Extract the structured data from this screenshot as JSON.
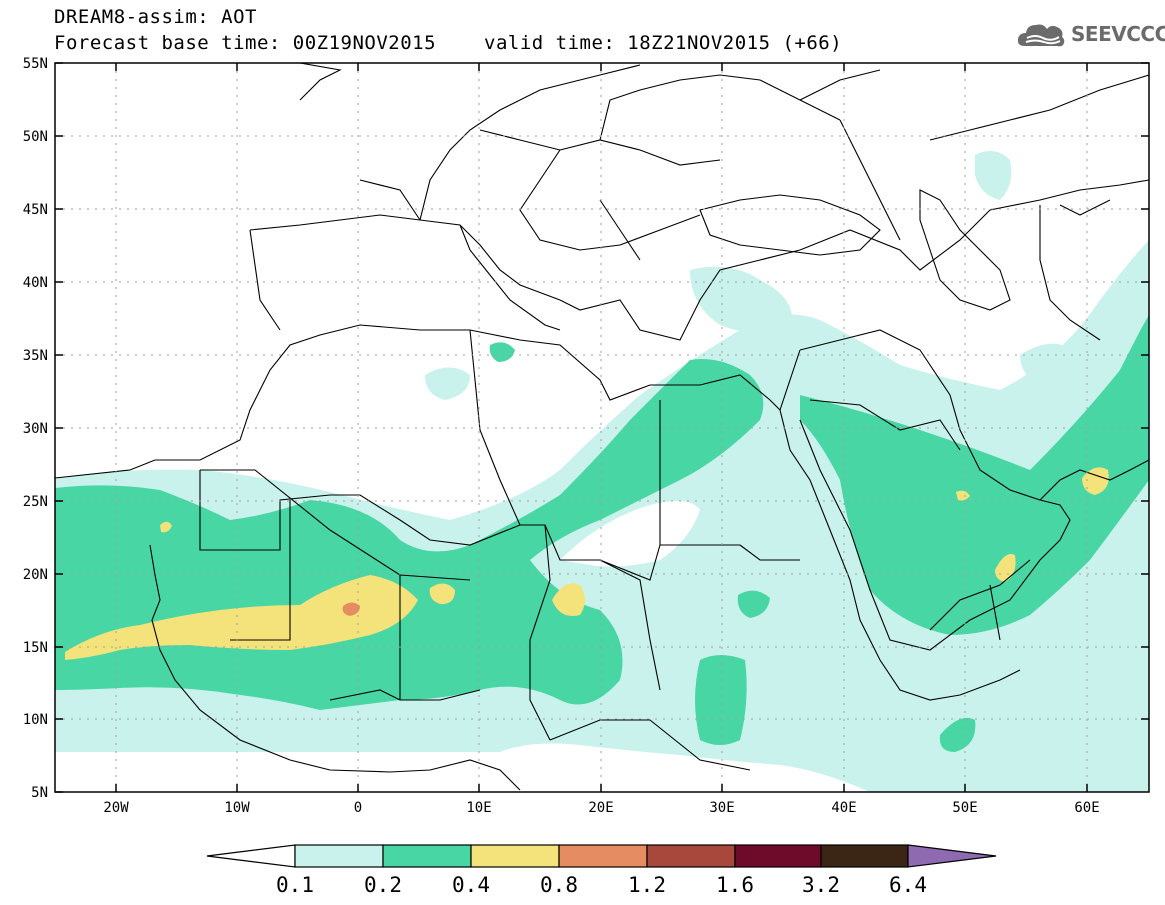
{
  "header": {
    "title": "DREAM8-assim: AOT",
    "forecast_base": "Forecast base time: 00Z19NOV2015",
    "valid_time": "valid time: 18Z21NOV2015 (+66)"
  },
  "logo": {
    "text": "SEEVCCC",
    "icon": "cloud-icon"
  },
  "map": {
    "lon_range": [
      -25,
      65
    ],
    "lat_range": [
      5,
      55
    ],
    "lat_labels": [
      "55N",
      "50N",
      "45N",
      "40N",
      "35N",
      "30N",
      "25N",
      "20N",
      "15N",
      "10N",
      "5N"
    ],
    "lon_labels": [
      "20W",
      "10W",
      "0",
      "10E",
      "20E",
      "30E",
      "40E",
      "50E",
      "60E"
    ],
    "grid": true
  },
  "colorbar": {
    "labels": [
      "0.1",
      "0.2",
      "0.4",
      "0.8",
      "1.2",
      "1.6",
      "3.2",
      "6.4"
    ],
    "colors": [
      "#ffffff",
      "#c9f2ec",
      "#48d6a4",
      "#f4e27a",
      "#e68c63",
      "#a8473c",
      "#6e0a2a",
      "#3b2616",
      "#8e6bb0"
    ]
  },
  "colors": {
    "aot_0_1_0_2": "#c9f2ec",
    "aot_0_2_0_4": "#48d6a4",
    "aot_0_4_0_8": "#f4e27a",
    "aot_0_8_1_2": "#e68c63"
  }
}
